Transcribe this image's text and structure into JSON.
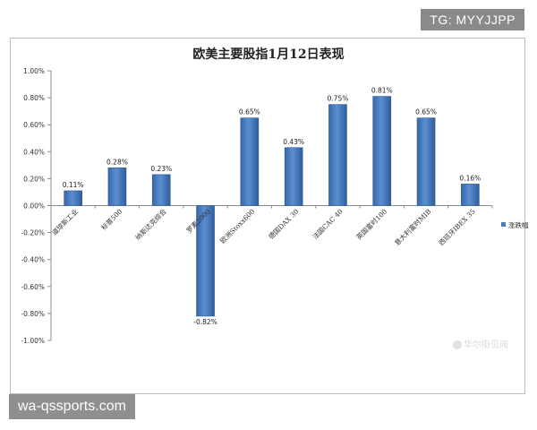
{
  "chart_data": {
    "type": "bar",
    "title": "欧美主要股指1月12日表现",
    "categories": [
      "道琼斯工业",
      "标普500",
      "纳斯达克综合",
      "罗素2000",
      "欧洲Stoxx600",
      "德国DAX 30",
      "法国CAC 40",
      "英国富时100",
      "意大利富时MIB",
      "西班牙IBEX 35"
    ],
    "series": [
      {
        "name": "涨跌幅",
        "values": [
          0.11,
          0.28,
          0.23,
          -0.82,
          0.65,
          0.43,
          0.75,
          0.81,
          0.65,
          0.16
        ],
        "labels": [
          "0.11%",
          "0.28%",
          "0.23%",
          "-0.82%",
          "0.65%",
          "0.43%",
          "0.75%",
          "0.81%",
          "0.65%",
          "0.16%"
        ]
      }
    ],
    "y_ticks": [
      1.0,
      0.8,
      0.6,
      0.4,
      0.2,
      0.0,
      -0.2,
      -0.4,
      -0.6,
      -0.8,
      -1.0
    ],
    "y_tick_labels": [
      "1.00%",
      "0.80%",
      "0.60%",
      "0.40%",
      "0.20%",
      "0.00%",
      "-0.20%",
      "-0.40%",
      "-0.60%",
      "-0.80%",
      "-1.00%"
    ],
    "ylim": [
      -1.0,
      1.0
    ],
    "grid": false,
    "legend_position": "right",
    "bar_color": "#4a7ebb",
    "xlabel": "",
    "ylabel": ""
  },
  "watermarks": {
    "top": "TG: MYYJJPP",
    "bottom": "wa-qssports.com",
    "chart": "华尔街见闻"
  }
}
